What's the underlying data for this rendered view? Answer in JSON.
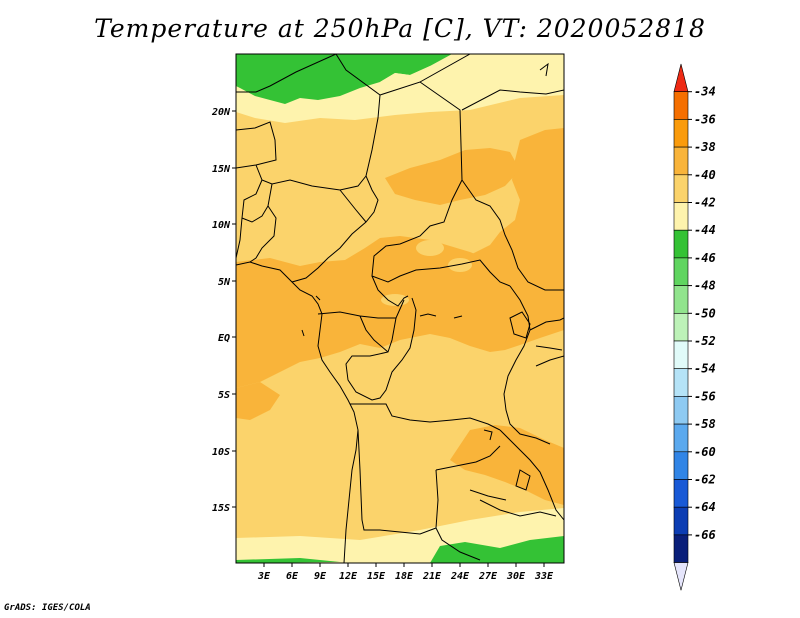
{
  "title": "Temperature at 250hPa [C], VT: 2020052818",
  "credit": "GrADS: IGES/COLA",
  "map": {
    "lat_labels": [
      "20N",
      "15N",
      "10N",
      "5N",
      "EQ",
      "5S",
      "10S",
      "15S"
    ],
    "lon_labels": [
      "3E",
      "6E",
      "9E",
      "12E",
      "15E",
      "18E",
      "21E",
      "24E",
      "27E",
      "30E",
      "33E"
    ]
  },
  "colorbar": {
    "levels": [
      "-34",
      "-36",
      "-38",
      "-40",
      "-42",
      "-44",
      "-46",
      "-48",
      "-50",
      "-52",
      "-54",
      "-56",
      "-58",
      "-60",
      "-62",
      "-64",
      "-66"
    ],
    "colors": [
      "#ee2a14",
      "#f56f00",
      "#fa9b0c",
      "#f9b43a",
      "#fbd36b",
      "#fef3ad",
      "#34c235",
      "#60d560",
      "#91e48d",
      "#bdf2b8",
      "#e1fbf9",
      "#b5e3f7",
      "#8ecaf2",
      "#5ba9ee",
      "#3185e6",
      "#1859d6",
      "#0c3db3",
      "#0a1f7a",
      "#e5e5fb"
    ]
  },
  "colors": {
    "t_warm": "#f9b43a",
    "t_mid": "#fbd36b",
    "t_cool": "#fef3ad",
    "t_green": "#34c235",
    "border": "#000000"
  }
}
